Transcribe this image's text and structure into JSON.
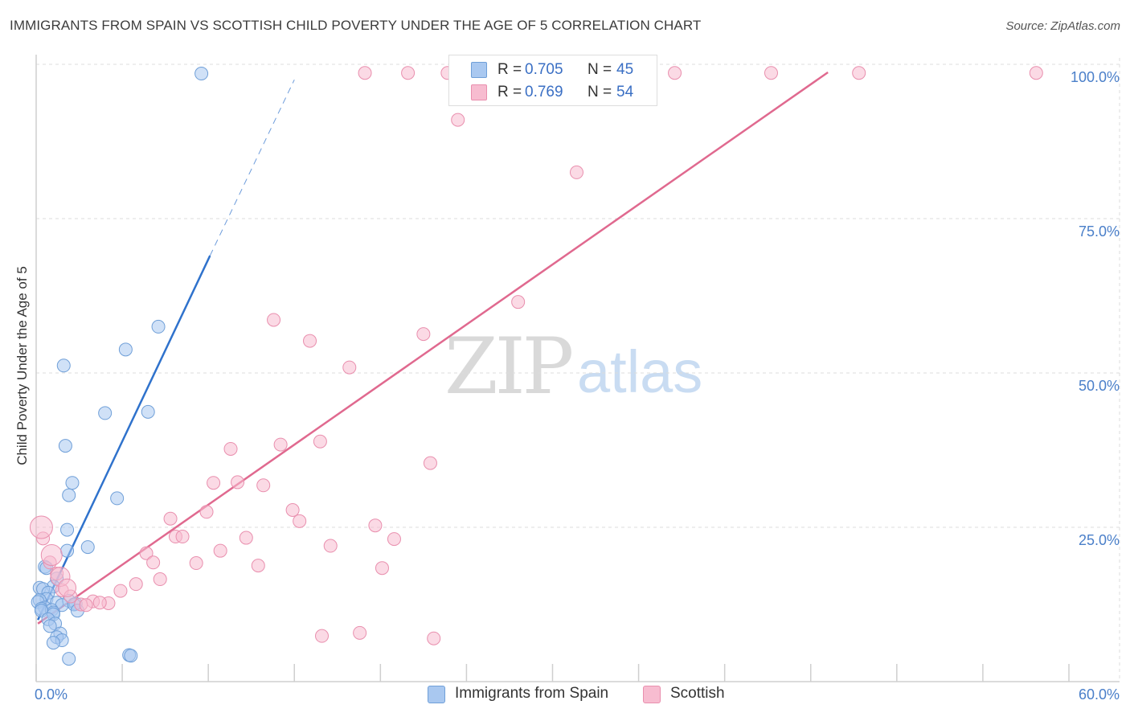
{
  "header": {
    "title": "IMMIGRANTS FROM SPAIN VS SCOTTISH CHILD POVERTY UNDER THE AGE OF 5 CORRELATION CHART",
    "source": "Source: ZipAtlas.com"
  },
  "watermark": {
    "zip": "ZIP",
    "atlas": "atlas"
  },
  "legend": {
    "r_label": "R =",
    "n_label": "N =",
    "rows": [
      {
        "r": "0.705",
        "n": "45",
        "color": "#a9c8f0"
      },
      {
        "r": "0.769",
        "n": "54",
        "color": "#f7bcd0"
      }
    ]
  },
  "bottom_legend": {
    "items": [
      {
        "label": "Immigrants from Spain",
        "color": "#a9c8f0"
      },
      {
        "label": "Scottish",
        "color": "#f7bcd0"
      }
    ]
  },
  "chart_data": {
    "type": "scatter",
    "title": "IMMIGRANTS FROM SPAIN VS SCOTTISH CHILD POVERTY UNDER THE AGE OF 5 CORRELATION CHART",
    "xlabel": "",
    "ylabel": "Child Poverty Under the Age of 5",
    "xlim": [
      0,
      60
    ],
    "ylim": [
      0,
      100
    ],
    "x_tick_labels": [
      "0.0%",
      "60.0%"
    ],
    "y_ticks": [
      25,
      50,
      75,
      100
    ],
    "y_tick_labels": [
      "25.0%",
      "50.0%",
      "75.0%",
      "100.0%"
    ],
    "grid": true,
    "legend_position": "top-center",
    "series": [
      {
        "name": "Immigrants from Spain",
        "color": "#a9c8f0",
        "stroke": "#6f9fd8",
        "line_color": "#2f72cc",
        "r": 0.705,
        "n": 45,
        "trend": {
          "x0": 0.1,
          "y0": 10.0,
          "x1": 10.1,
          "y1": 69.0,
          "dash_to_x": 15.0,
          "dash_to_y": 97.5
        },
        "points": [
          [
            9.6,
            98.5
          ],
          [
            7.1,
            57.5
          ],
          [
            5.2,
            53.8
          ],
          [
            1.6,
            51.2
          ],
          [
            6.5,
            43.7
          ],
          [
            4.0,
            43.5
          ],
          [
            1.7,
            38.2
          ],
          [
            2.1,
            32.2
          ],
          [
            1.9,
            30.2
          ],
          [
            4.7,
            29.7
          ],
          [
            1.8,
            24.6
          ],
          [
            3.0,
            21.8
          ],
          [
            1.8,
            21.2
          ],
          [
            0.5,
            18.6
          ],
          [
            0.6,
            18.4
          ],
          [
            1.2,
            16.7
          ],
          [
            1.0,
            15.4
          ],
          [
            0.2,
            15.2
          ],
          [
            0.4,
            15.0
          ],
          [
            0.7,
            14.4
          ],
          [
            0.6,
            13.4
          ],
          [
            0.2,
            13.2
          ],
          [
            0.1,
            12.9
          ],
          [
            1.2,
            12.8
          ],
          [
            1.9,
            13.1
          ],
          [
            1.5,
            12.4
          ],
          [
            2.3,
            12.6
          ],
          [
            0.5,
            12.0
          ],
          [
            0.3,
            11.8
          ],
          [
            0.9,
            11.6
          ],
          [
            1.0,
            11.2
          ],
          [
            2.2,
            12.5
          ],
          [
            1.0,
            10.9
          ],
          [
            2.4,
            11.5
          ],
          [
            0.3,
            11.5
          ],
          [
            0.7,
            10.1
          ],
          [
            1.1,
            9.4
          ],
          [
            0.8,
            9.0
          ],
          [
            1.4,
            7.8
          ],
          [
            1.2,
            7.2
          ],
          [
            1.5,
            6.7
          ],
          [
            1.0,
            6.3
          ],
          [
            5.4,
            4.3
          ],
          [
            5.5,
            4.2
          ],
          [
            1.9,
            3.7
          ]
        ]
      },
      {
        "name": "Scottish",
        "color": "#f7bcd0",
        "stroke": "#e98fae",
        "line_color": "#e0698f",
        "r": 0.769,
        "n": 54,
        "trend": {
          "x0": 0.1,
          "y0": 9.4,
          "x1": 46.0,
          "y1": 98.7
        },
        "points": [
          [
            19.1,
            98.6
          ],
          [
            21.6,
            98.6
          ],
          [
            23.9,
            98.6
          ],
          [
            31.9,
            98.6
          ],
          [
            37.1,
            98.6
          ],
          [
            42.7,
            98.6
          ],
          [
            47.8,
            98.6
          ],
          [
            58.1,
            98.6
          ],
          [
            24.5,
            91.0
          ],
          [
            31.4,
            82.5
          ],
          [
            28.0,
            61.5
          ],
          [
            13.8,
            58.6
          ],
          [
            15.9,
            55.2
          ],
          [
            22.5,
            56.3
          ],
          [
            18.2,
            50.9
          ],
          [
            14.2,
            38.4
          ],
          [
            16.5,
            38.9
          ],
          [
            11.3,
            37.7
          ],
          [
            22.9,
            35.4
          ],
          [
            10.3,
            32.2
          ],
          [
            11.7,
            32.3
          ],
          [
            13.2,
            31.8
          ],
          [
            14.9,
            27.8
          ],
          [
            9.9,
            27.5
          ],
          [
            15.3,
            26.0
          ],
          [
            7.8,
            26.4
          ],
          [
            19.7,
            25.3
          ],
          [
            8.1,
            23.5
          ],
          [
            8.5,
            23.5
          ],
          [
            20.8,
            23.1
          ],
          [
            12.2,
            23.3
          ],
          [
            17.1,
            22.0
          ],
          [
            6.4,
            20.8
          ],
          [
            10.7,
            21.2
          ],
          [
            6.8,
            19.3
          ],
          [
            9.3,
            19.2
          ],
          [
            12.9,
            18.8
          ],
          [
            20.1,
            18.4
          ],
          [
            0.4,
            23.2
          ],
          [
            0.8,
            19.3
          ],
          [
            1.2,
            17.5
          ],
          [
            7.2,
            16.6
          ],
          [
            5.8,
            15.8
          ],
          [
            1.5,
            14.8
          ],
          [
            4.9,
            14.7
          ],
          [
            2.0,
            13.8
          ],
          [
            3.3,
            13.0
          ],
          [
            4.2,
            12.7
          ],
          [
            2.6,
            12.5
          ],
          [
            3.7,
            12.8
          ],
          [
            2.9,
            12.4
          ],
          [
            16.6,
            7.4
          ],
          [
            18.8,
            7.9
          ],
          [
            23.1,
            7.0
          ]
        ]
      }
    ]
  }
}
